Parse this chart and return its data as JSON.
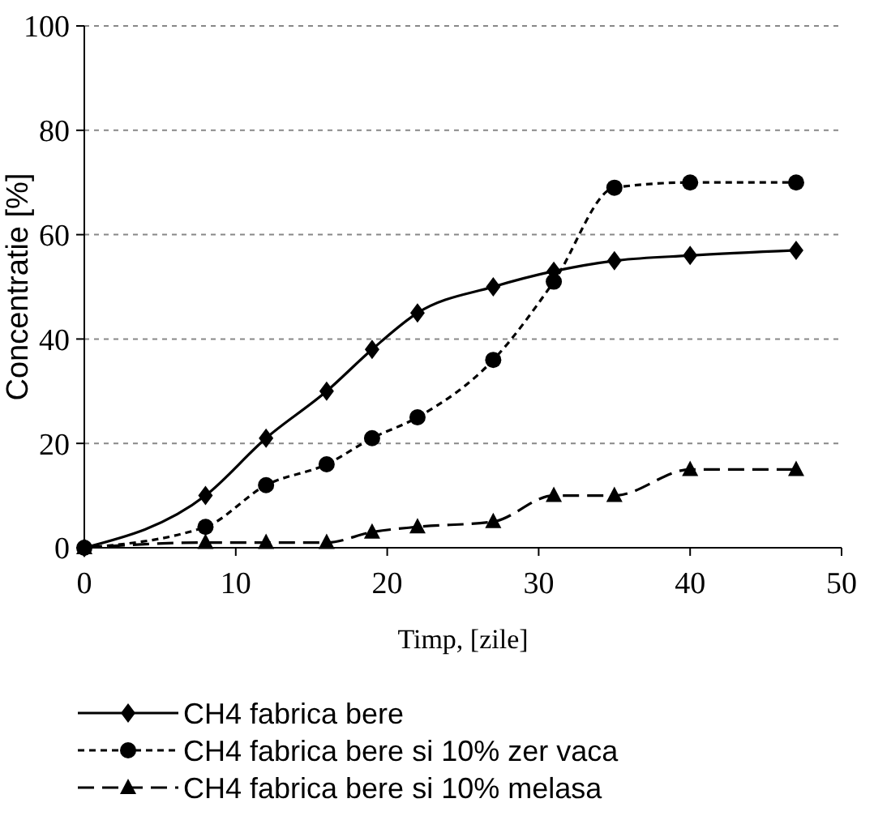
{
  "chart_data": {
    "type": "line",
    "xlabel": "Timp, [zile]",
    "ylabel": "Concentratie [%]",
    "xlim": [
      0,
      50
    ],
    "xticks": [
      0,
      10,
      20,
      30,
      40,
      50
    ],
    "ylim": [
      0,
      100
    ],
    "yticks": [
      0,
      20,
      40,
      60,
      80,
      100
    ],
    "grid": "y",
    "legend": "bottom",
    "series": [
      {
        "name": "CH4 fabrica bere",
        "color": "#000000",
        "marker": "diamond",
        "line_style": "solid",
        "x": [
          0,
          8,
          12,
          16,
          19,
          22,
          27,
          31,
          35,
          40,
          47
        ],
        "values": [
          0,
          10,
          21,
          30,
          38,
          45,
          50,
          53,
          55,
          56,
          57
        ]
      },
      {
        "name": "CH4 fabrica bere si 10% zer vaca",
        "color": "#000000",
        "marker": "circle",
        "line_style": "dotted",
        "x": [
          0,
          8,
          12,
          16,
          19,
          22,
          27,
          31,
          35,
          40,
          47
        ],
        "values": [
          0,
          4,
          12,
          16,
          21,
          25,
          36,
          51,
          69,
          70,
          70
        ]
      },
      {
        "name": "CH4 fabrica bere si 10% melasa",
        "color": "#000000",
        "marker": "triangle",
        "line_style": "dashed",
        "x": [
          0,
          8,
          12,
          16,
          19,
          22,
          27,
          31,
          35,
          40,
          47
        ],
        "values": [
          0,
          1,
          1,
          1,
          3,
          4,
          5,
          10,
          10,
          15,
          15
        ]
      }
    ]
  }
}
